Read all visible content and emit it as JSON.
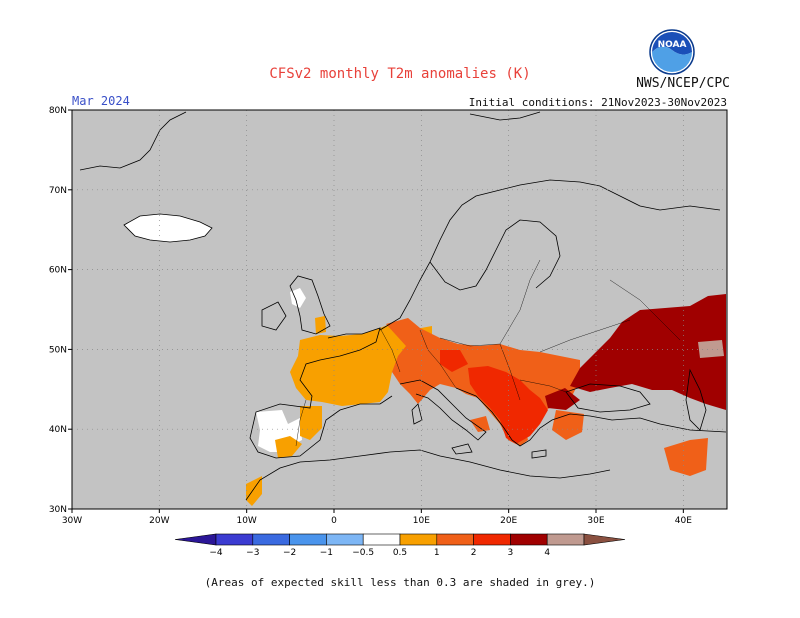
{
  "header": {
    "title": "CFSv2 monthly T2m anomalies (K)",
    "agency": "NWS/NCEP/CPC",
    "month": "Mar 2024",
    "initial_conditions": "Initial conditions: 21Nov2023-30Nov2023",
    "logo_text": "NOAA"
  },
  "map": {
    "lon_range": [
      -30,
      45
    ],
    "lat_range": [
      30,
      80
    ],
    "lat_labels": [
      "80N",
      "70N",
      "60N",
      "50N",
      "40N",
      "30N"
    ],
    "lon_labels": [
      "30W",
      "20W",
      "10W",
      "0",
      "10E",
      "20E",
      "30E",
      "40E"
    ],
    "background_color": "#c3c3c3"
  },
  "legend": {
    "colors": [
      "#2b1697",
      "#3b3bd1",
      "#3a6ae0",
      "#4a94ec",
      "#7db6f5",
      "#ffffff",
      "#f8a000",
      "#f06018",
      "#f02800",
      "#a00000",
      "#c09a90",
      "#8a5040"
    ],
    "labels": [
      "−4",
      "−3",
      "−2",
      "−1",
      "−0.5",
      "0.5",
      "1",
      "2",
      "3",
      "4"
    ]
  },
  "footnote": "(Areas of expected skill less than 0.3 are shaded in grey.)"
}
